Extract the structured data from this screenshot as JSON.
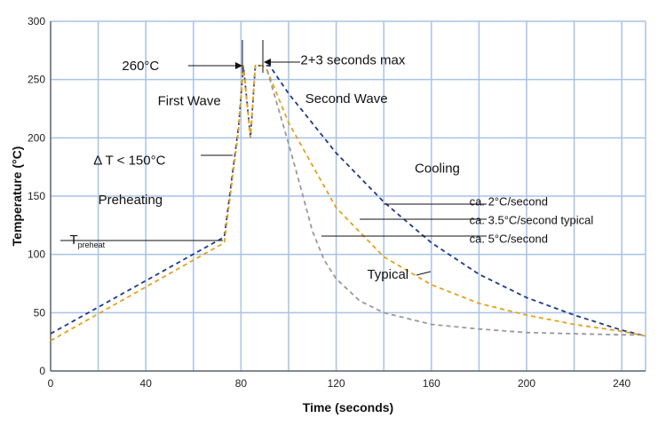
{
  "chart_data": {
    "type": "line",
    "xlabel": "Time (seconds)",
    "ylabel": "Temperature (°C)",
    "xlim": [
      0,
      250
    ],
    "ylim": [
      0,
      300
    ],
    "xticks": [
      0,
      40,
      80,
      120,
      160,
      200,
      240
    ],
    "yticks": [
      0,
      50,
      100,
      150,
      200,
      250,
      300
    ],
    "grid": true,
    "series": [
      {
        "color": "#1f3a8a",
        "style": "dashed",
        "x": [
          0,
          73,
          79,
          81,
          84,
          86,
          89,
          92,
          100,
          120,
          140,
          160,
          180,
          200,
          220,
          240,
          250
        ],
        "y": [
          32,
          115,
          210,
          262,
          200,
          262,
          262,
          262,
          238,
          187,
          145,
          110,
          83,
          63,
          48,
          35,
          30
        ]
      },
      {
        "color": "#e3a21a",
        "style": "dashed",
        "x": [
          0,
          73,
          79,
          81,
          84,
          86,
          89,
          91,
          100,
          120,
          140,
          160,
          180,
          200,
          220,
          240,
          250
        ],
        "y": [
          26,
          110,
          207,
          262,
          200,
          262,
          262,
          258,
          213,
          140,
          98,
          74,
          58,
          48,
          40,
          34,
          30
        ]
      },
      {
        "color": "#999999",
        "style": "dashed",
        "x": [
          91,
          95,
          100,
          105,
          110,
          115,
          120,
          130,
          140,
          160,
          180,
          200,
          220,
          240,
          250
        ],
        "y": [
          258,
          230,
          195,
          158,
          120,
          95,
          79,
          60,
          50,
          40,
          36,
          33,
          32,
          31,
          31
        ]
      }
    ],
    "annotations": [
      {
        "key": "peak",
        "text": "260°C",
        "x": 30,
        "y": 258
      },
      {
        "key": "dwell",
        "text": "2+3 seconds max",
        "x": 105,
        "y": 263
      },
      {
        "key": "first_wave",
        "text": "First Wave",
        "x": 45,
        "y": 228
      },
      {
        "key": "second_wave",
        "text": "Second Wave",
        "x": 107,
        "y": 230
      },
      {
        "key": "delta_t",
        "text": "Δ T < 150°C",
        "x": 18,
        "y": 177
      },
      {
        "key": "cooling",
        "text": "Cooling",
        "x": 153,
        "y": 170
      },
      {
        "key": "preheating",
        "text": "Preheating",
        "x": 20,
        "y": 143
      },
      {
        "key": "t_preheat",
        "text": "T",
        "sub": "preheat",
        "x": 8,
        "y": 109
      },
      {
        "key": "rate_2",
        "text": "ca. 2°C/second",
        "x": 176,
        "y": 142
      },
      {
        "key": "rate_3_5",
        "text": "ca. 3.5°C/second typical",
        "x": 176,
        "y": 126
      },
      {
        "key": "rate_5",
        "text": "ca. 5°C/second",
        "x": 176,
        "y": 110
      },
      {
        "key": "typical",
        "text": "Typical",
        "x": 133,
        "y": 79
      }
    ]
  }
}
